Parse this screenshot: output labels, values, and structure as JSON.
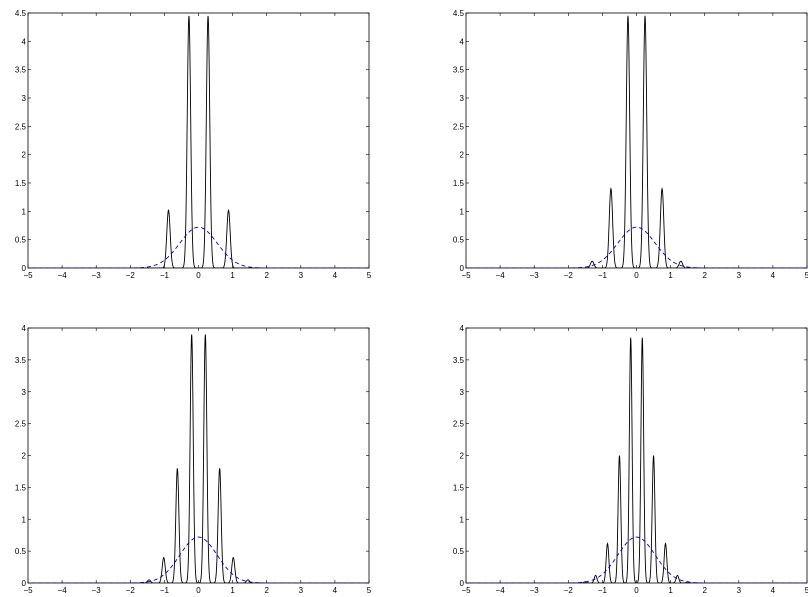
{
  "figure": {
    "layout": "2x2 grid",
    "background": "#ffffff"
  },
  "colors": {
    "peaks": "#000000",
    "envelope": "#0000cc",
    "axes": "#000000"
  },
  "chart_data": [
    {
      "type": "line",
      "position": "top-left",
      "xlim": [
        -5,
        5
      ],
      "ylim": [
        0,
        4.5
      ],
      "xticks": [
        -5,
        -4,
        -3,
        -2,
        -1,
        0,
        1,
        2,
        3,
        4,
        5
      ],
      "yticks": [
        0,
        0.5,
        1,
        1.5,
        2,
        2.5,
        3,
        3.5,
        4,
        4.5
      ],
      "xtick_labels": [
        "−5",
        "−4",
        "−3",
        "−2",
        "−1",
        "0",
        "1",
        "2",
        "3",
        "4",
        "5"
      ],
      "ytick_labels": [
        "0",
        "0.5",
        "1",
        "1.5",
        "2",
        "2.5",
        "3",
        "3.5",
        "4",
        "4.5"
      ],
      "grid": false,
      "series": [
        {
          "style": "solid",
          "color": "#000000",
          "kind": "peaks",
          "peaks": [
            {
              "x": -0.88,
              "y": 1.02
            },
            {
              "x": -0.28,
              "y": 4.45
            },
            {
              "x": 0.28,
              "y": 4.45
            },
            {
              "x": 0.88,
              "y": 1.02
            }
          ],
          "peak_width": 0.05
        },
        {
          "style": "dashed",
          "color": "#0000cc",
          "kind": "gaussian",
          "amplitude": 0.72,
          "sigma": 0.55
        }
      ]
    },
    {
      "type": "line",
      "position": "top-right",
      "xlim": [
        -5,
        5
      ],
      "ylim": [
        0,
        4.5
      ],
      "xticks": [
        -5,
        -4,
        -3,
        -2,
        -1,
        0,
        1,
        2,
        3,
        4,
        5
      ],
      "yticks": [
        0,
        0.5,
        1,
        1.5,
        2,
        2.5,
        3,
        3.5,
        4,
        4.5
      ],
      "xtick_labels": [
        "−5",
        "−4",
        "−3",
        "−2",
        "−1",
        "0",
        "1",
        "2",
        "3",
        "4",
        "5"
      ],
      "ytick_labels": [
        "0",
        "0.5",
        "1",
        "1.5",
        "2",
        "2.5",
        "3",
        "3.5",
        "4",
        "4.5"
      ],
      "grid": false,
      "series": [
        {
          "style": "solid",
          "color": "#000000",
          "kind": "peaks",
          "peaks": [
            {
              "x": -1.3,
              "y": 0.12
            },
            {
              "x": -0.75,
              "y": 1.4
            },
            {
              "x": -0.25,
              "y": 4.45
            },
            {
              "x": 0.25,
              "y": 4.45
            },
            {
              "x": 0.75,
              "y": 1.4
            },
            {
              "x": 1.3,
              "y": 0.12
            }
          ],
          "peak_width": 0.05
        },
        {
          "style": "dashed",
          "color": "#0000cc",
          "kind": "gaussian",
          "amplitude": 0.72,
          "sigma": 0.55
        }
      ]
    },
    {
      "type": "line",
      "position": "bottom-left",
      "xlim": [
        -5,
        5
      ],
      "ylim": [
        0,
        4
      ],
      "xticks": [
        -5,
        -4,
        -3,
        -2,
        -1,
        0,
        1,
        2,
        3,
        4,
        5
      ],
      "yticks": [
        0,
        0.5,
        1,
        1.5,
        2,
        2.5,
        3,
        3.5,
        4
      ],
      "xtick_labels": [
        "−5",
        "−4",
        "−3",
        "−2",
        "−1",
        "0",
        "1",
        "2",
        "3",
        "4",
        "5"
      ],
      "ytick_labels": [
        "0",
        "0.5",
        "1",
        "1.5",
        "2",
        "2.5",
        "3",
        "3.5",
        "4"
      ],
      "grid": false,
      "series": [
        {
          "style": "solid",
          "color": "#000000",
          "kind": "peaks",
          "peaks": [
            {
              "x": -1.45,
              "y": 0.05
            },
            {
              "x": -1.02,
              "y": 0.4
            },
            {
              "x": -0.62,
              "y": 1.8
            },
            {
              "x": -0.2,
              "y": 3.9
            },
            {
              "x": 0.2,
              "y": 3.9
            },
            {
              "x": 0.62,
              "y": 1.8
            },
            {
              "x": 1.02,
              "y": 0.4
            },
            {
              "x": 1.45,
              "y": 0.05
            }
          ],
          "peak_width": 0.045
        },
        {
          "style": "dashed",
          "color": "#0000cc",
          "kind": "gaussian",
          "amplitude": 0.72,
          "sigma": 0.55
        }
      ]
    },
    {
      "type": "line",
      "position": "bottom-right",
      "xlim": [
        -5,
        5
      ],
      "ylim": [
        0,
        4
      ],
      "xticks": [
        -5,
        -4,
        -3,
        -2,
        -1,
        0,
        1,
        2,
        3,
        4,
        5
      ],
      "yticks": [
        0,
        0.5,
        1,
        1.5,
        2,
        2.5,
        3,
        3.5,
        4
      ],
      "xtick_labels": [
        "−5",
        "−4",
        "−3",
        "−2",
        "−1",
        "0",
        "1",
        "2",
        "3",
        "4",
        "5"
      ],
      "ytick_labels": [
        "0",
        "0.5",
        "1",
        "1.5",
        "2",
        "2.5",
        "3",
        "3.5",
        "4"
      ],
      "grid": false,
      "series": [
        {
          "style": "solid",
          "color": "#000000",
          "kind": "peaks",
          "peaks": [
            {
              "x": -1.5,
              "y": 0.02
            },
            {
              "x": -1.2,
              "y": 0.12
            },
            {
              "x": -0.85,
              "y": 0.62
            },
            {
              "x": -0.5,
              "y": 2.0
            },
            {
              "x": -0.17,
              "y": 3.85
            },
            {
              "x": 0.17,
              "y": 3.85
            },
            {
              "x": 0.5,
              "y": 2.0
            },
            {
              "x": 0.85,
              "y": 0.62
            },
            {
              "x": 1.2,
              "y": 0.12
            },
            {
              "x": 1.5,
              "y": 0.02
            }
          ],
          "peak_width": 0.04
        },
        {
          "style": "dashed",
          "color": "#0000cc",
          "kind": "gaussian",
          "amplitude": 0.72,
          "sigma": 0.55
        }
      ]
    }
  ]
}
